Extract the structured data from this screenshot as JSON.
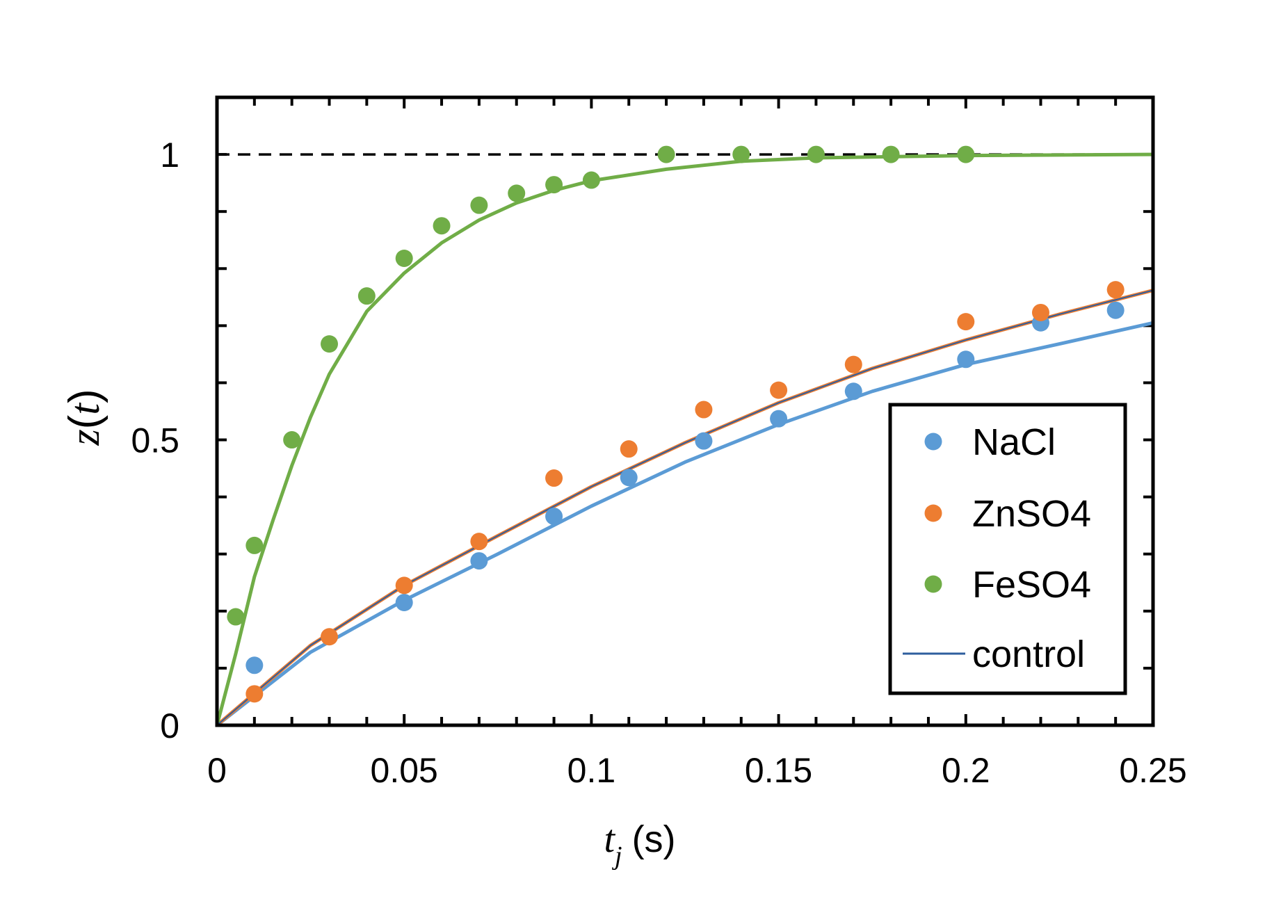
{
  "chart_data": {
    "type": "scatter",
    "title": "",
    "xlabel": {
      "symbol": "t",
      "subscript": "j",
      "unit": "(s)"
    },
    "ylabel": {
      "symbol": "z",
      "argument": "t"
    },
    "xlim": [
      0,
      0.25
    ],
    "ylim": [
      0,
      1.1
    ],
    "x_ticks": [
      0,
      0.05,
      0.1,
      0.15,
      0.2,
      0.25
    ],
    "x_tick_labels": [
      "0",
      "0.05",
      "0.1",
      "0.15",
      "0.2",
      "0.25"
    ],
    "y_ticks": [
      0,
      0.5,
      1
    ],
    "y_tick_labels": [
      "0",
      "0.5",
      "1"
    ],
    "reference_line": {
      "y": 1,
      "style": "dashed",
      "color": "#000000"
    },
    "grid": false,
    "legend": {
      "placement": "bottom-right",
      "entries": [
        {
          "label": "NaCl",
          "kind": "marker",
          "color": "#5B9BD5"
        },
        {
          "label": "ZnSO4",
          "kind": "marker",
          "color": "#ED7D31"
        },
        {
          "label": "FeSO4",
          "kind": "marker",
          "color": "#70AD47"
        },
        {
          "label": "control",
          "kind": "line",
          "color": "#2E5E9E"
        }
      ]
    },
    "series": [
      {
        "name": "NaCl",
        "color": "#5B9BD5",
        "points": [
          [
            0.01,
            0.105
          ],
          [
            0.05,
            0.215
          ],
          [
            0.07,
            0.288
          ],
          [
            0.09,
            0.366
          ],
          [
            0.11,
            0.434
          ],
          [
            0.13,
            0.498
          ],
          [
            0.15,
            0.537
          ],
          [
            0.17,
            0.585
          ],
          [
            0.2,
            0.641
          ],
          [
            0.22,
            0.705
          ],
          [
            0.24,
            0.727
          ]
        ],
        "fit": [
          [
            0,
            0
          ],
          [
            0.025,
            0.128
          ],
          [
            0.05,
            0.219
          ],
          [
            0.075,
            0.3
          ],
          [
            0.1,
            0.384
          ],
          [
            0.125,
            0.461
          ],
          [
            0.15,
            0.527
          ],
          [
            0.175,
            0.585
          ],
          [
            0.2,
            0.632
          ],
          [
            0.225,
            0.668
          ],
          [
            0.25,
            0.705
          ]
        ]
      },
      {
        "name": "ZnSO4",
        "color": "#ED7D31",
        "points": [
          [
            0.01,
            0.055
          ],
          [
            0.03,
            0.155
          ],
          [
            0.05,
            0.245
          ],
          [
            0.07,
            0.322
          ],
          [
            0.09,
            0.433
          ],
          [
            0.11,
            0.484
          ],
          [
            0.13,
            0.553
          ],
          [
            0.15,
            0.587
          ],
          [
            0.17,
            0.632
          ],
          [
            0.2,
            0.707
          ],
          [
            0.22,
            0.723
          ],
          [
            0.24,
            0.763
          ]
        ],
        "fit": [
          [
            0,
            0
          ],
          [
            0.025,
            0.14
          ],
          [
            0.05,
            0.245
          ],
          [
            0.075,
            0.332
          ],
          [
            0.1,
            0.418
          ],
          [
            0.125,
            0.495
          ],
          [
            0.15,
            0.565
          ],
          [
            0.175,
            0.625
          ],
          [
            0.2,
            0.675
          ],
          [
            0.225,
            0.72
          ],
          [
            0.25,
            0.762
          ]
        ]
      },
      {
        "name": "FeSO4",
        "color": "#70AD47",
        "points": [
          [
            0.005,
            0.19
          ],
          [
            0.01,
            0.315
          ],
          [
            0.02,
            0.5
          ],
          [
            0.03,
            0.668
          ],
          [
            0.04,
            0.752
          ],
          [
            0.05,
            0.818
          ],
          [
            0.06,
            0.875
          ],
          [
            0.07,
            0.911
          ],
          [
            0.08,
            0.932
          ],
          [
            0.09,
            0.947
          ],
          [
            0.1,
            0.955
          ],
          [
            0.12,
            1.0
          ],
          [
            0.14,
            1.0
          ],
          [
            0.16,
            1.0
          ],
          [
            0.18,
            1.0
          ],
          [
            0.2,
            1.0
          ]
        ],
        "fit": [
          [
            0,
            0
          ],
          [
            0.005,
            0.125
          ],
          [
            0.01,
            0.26
          ],
          [
            0.015,
            0.36
          ],
          [
            0.02,
            0.455
          ],
          [
            0.025,
            0.54
          ],
          [
            0.03,
            0.615
          ],
          [
            0.04,
            0.725
          ],
          [
            0.05,
            0.792
          ],
          [
            0.06,
            0.845
          ],
          [
            0.07,
            0.885
          ],
          [
            0.08,
            0.915
          ],
          [
            0.09,
            0.937
          ],
          [
            0.1,
            0.954
          ],
          [
            0.12,
            0.974
          ],
          [
            0.14,
            0.988
          ],
          [
            0.16,
            0.994
          ],
          [
            0.2,
            0.998
          ],
          [
            0.25,
            1.0
          ]
        ]
      },
      {
        "name": "control",
        "color": "#2E5E9E",
        "line_only": true,
        "fit": [
          [
            0,
            0
          ],
          [
            0.025,
            0.14
          ],
          [
            0.05,
            0.245
          ],
          [
            0.075,
            0.332
          ],
          [
            0.1,
            0.418
          ],
          [
            0.125,
            0.495
          ],
          [
            0.15,
            0.565
          ],
          [
            0.175,
            0.625
          ],
          [
            0.2,
            0.675
          ],
          [
            0.225,
            0.72
          ],
          [
            0.25,
            0.762
          ]
        ]
      }
    ]
  }
}
